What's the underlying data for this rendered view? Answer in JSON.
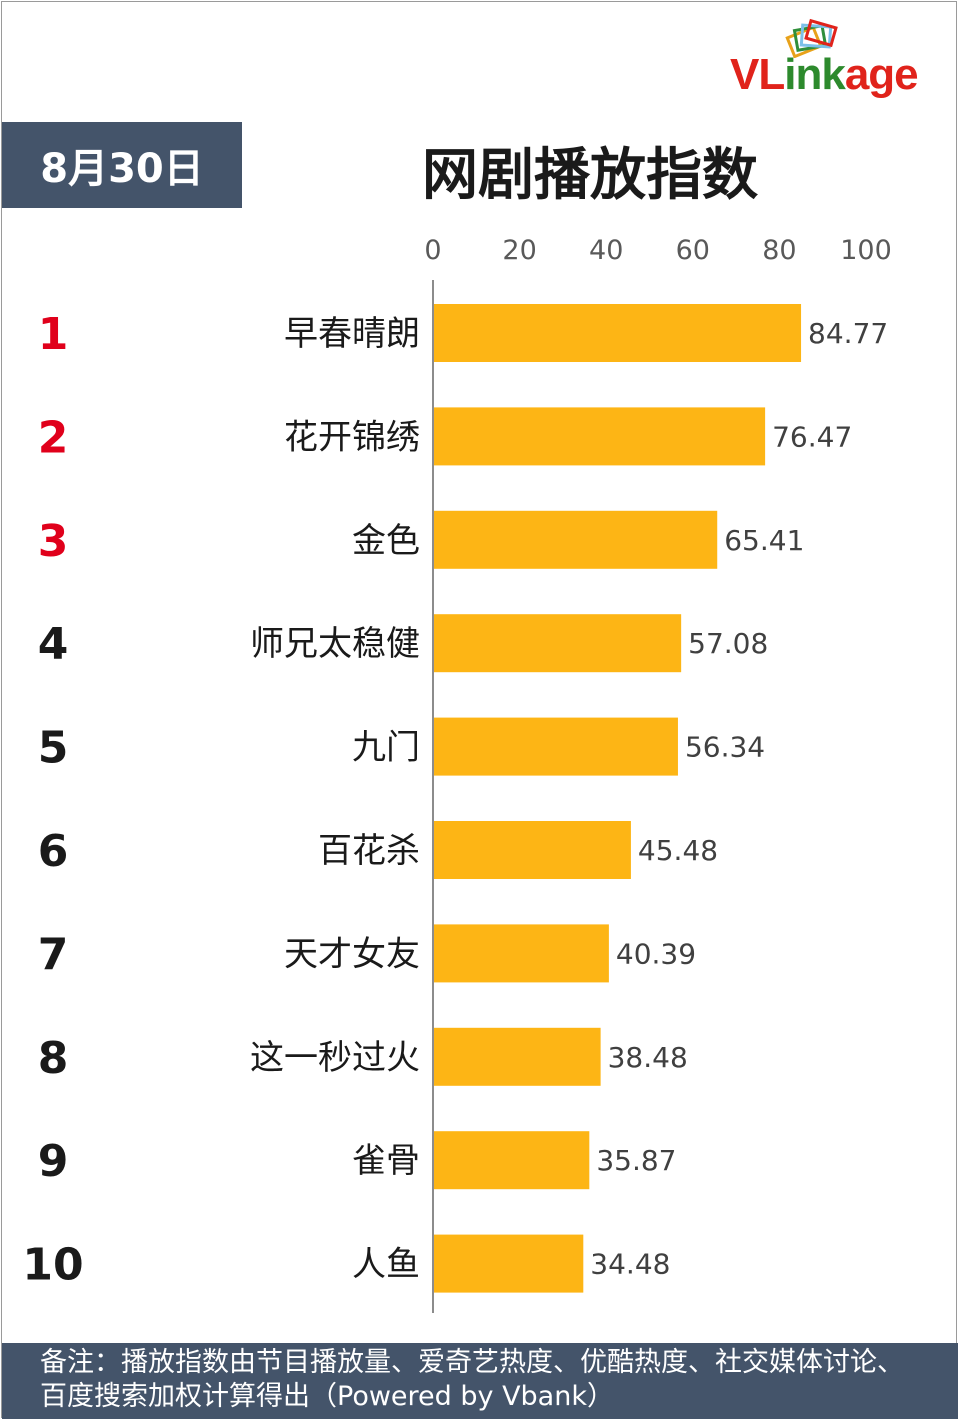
{
  "header": {
    "date": "8月30日",
    "title": "网剧播放指数"
  },
  "logo": {
    "text_vl": "VL",
    "text_ink": "ink",
    "text_age": "age",
    "colors": [
      "#e8a21a",
      "#2f8f3a",
      "#7cc0e8",
      "#e0231b",
      "#f2c44c"
    ]
  },
  "chart_data": {
    "type": "bar",
    "orientation": "horizontal",
    "title": "网剧播放指数",
    "categories": [
      "早春晴朗",
      "花开锦绣",
      "金色",
      "师兄太稳健",
      "九门",
      "百花杀",
      "天才女友",
      "这一秒过火",
      "雀骨",
      "人鱼"
    ],
    "ranks": [
      "1",
      "2",
      "3",
      "4",
      "5",
      "6",
      "7",
      "8",
      "9",
      "10"
    ],
    "values": [
      84.77,
      76.47,
      65.41,
      57.08,
      56.34,
      45.48,
      40.39,
      38.48,
      35.87,
      34.48
    ],
    "value_labels": [
      "84.77",
      "76.47",
      "65.41",
      "57.08",
      "56.34",
      "45.48",
      "40.39",
      "38.48",
      "35.87",
      "34.48"
    ],
    "xlim": [
      0,
      100
    ],
    "xticks": [
      "0",
      "20",
      "40",
      "60",
      "80",
      "100"
    ],
    "axis_position": "top",
    "grid": false,
    "bar_color": "#fdb515",
    "rank_colors": [
      "#e0001b",
      "#e0001b",
      "#e0001b",
      "#1a1a1a",
      "#1a1a1a",
      "#1a1a1a",
      "#1a1a1a",
      "#1a1a1a",
      "#1a1a1a",
      "#1a1a1a"
    ]
  },
  "footnote": {
    "text": "备注：播放指数由节目播放量、爱奇艺热度、优酷热度、社交媒体讨论、百度搜索加权计算得出（Powered by Vbank）"
  }
}
